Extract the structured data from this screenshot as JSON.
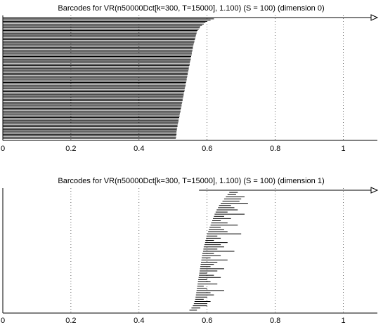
{
  "chart_data": [
    {
      "type": "barcode",
      "title": "Barcodes for VR(n50000Dct[k=300, T=15000], 1.100) (S = 100) (dimension 0)",
      "xlim": [
        0,
        1.1
      ],
      "xticks": [
        0,
        0.2,
        0.4,
        0.6,
        0.8,
        1
      ],
      "grid": true,
      "color": "#000000",
      "starts": [
        0,
        0,
        0,
        0,
        0,
        0,
        0,
        0,
        0,
        0,
        0,
        0,
        0,
        0,
        0,
        0,
        0,
        0,
        0,
        0,
        0,
        0,
        0,
        0,
        0,
        0,
        0,
        0,
        0,
        0,
        0,
        0,
        0,
        0,
        0,
        0,
        0,
        0,
        0,
        0,
        0,
        0,
        0,
        0,
        0,
        0,
        0,
        0,
        0,
        0,
        0,
        0,
        0,
        0,
        0,
        0,
        0,
        0,
        0,
        0,
        0,
        0,
        0,
        0,
        0,
        0,
        0,
        0,
        0,
        0,
        0,
        0,
        0,
        0,
        0,
        0,
        0,
        0,
        0,
        0,
        0,
        0,
        0,
        0,
        0,
        0,
        0,
        0,
        0,
        0,
        0,
        0,
        0,
        0
      ],
      "ends": [
        null,
        0.62,
        0.61,
        0.6,
        0.595,
        0.59,
        0.585,
        0.58,
        0.578,
        0.575,
        0.572,
        0.57,
        0.569,
        0.568,
        0.567,
        0.566,
        0.565,
        0.564,
        0.563,
        0.562,
        0.561,
        0.56,
        0.559,
        0.558,
        0.558,
        0.557,
        0.556,
        0.555,
        0.555,
        0.554,
        0.553,
        0.552,
        0.552,
        0.551,
        0.55,
        0.549,
        0.549,
        0.548,
        0.547,
        0.546,
        0.546,
        0.545,
        0.544,
        0.543,
        0.543,
        0.542,
        0.541,
        0.54,
        0.54,
        0.539,
        0.538,
        0.537,
        0.537,
        0.536,
        0.535,
        0.534,
        0.534,
        0.533,
        0.532,
        0.531,
        0.531,
        0.53,
        0.529,
        0.528,
        0.528,
        0.527,
        0.526,
        0.525,
        0.525,
        0.524,
        0.523,
        0.522,
        0.522,
        0.521,
        0.52,
        0.519,
        0.519,
        0.518,
        0.517,
        0.516,
        0.516,
        0.515,
        0.514,
        0.513,
        0.513,
        0.512,
        0.511,
        0.511,
        0.51,
        0.51,
        0.51,
        0.509,
        0.509,
        0.508
      ]
    },
    {
      "type": "barcode",
      "title": "Barcodes for VR(n50000Dct[k=300, T=15000], 1.100) (S = 100) (dimension 1)",
      "xlim": [
        0,
        1.1
      ],
      "xticks": [
        0,
        0.2,
        0.4,
        0.6,
        0.8,
        1
      ],
      "grid": true,
      "color": "#000000",
      "starts": [
        0.576,
        0.665,
        0.66,
        0.655,
        0.65,
        0.645,
        0.64,
        0.635,
        0.632,
        0.628,
        0.625,
        0.622,
        0.62,
        0.617,
        0.615,
        0.612,
        0.61,
        0.607,
        0.605,
        0.603,
        0.6,
        0.598,
        0.597,
        0.595,
        0.594,
        0.592,
        0.59,
        0.589,
        0.588,
        0.586,
        0.585,
        0.584,
        0.583,
        0.582,
        0.581,
        0.58,
        0.579,
        0.578,
        0.577,
        0.576,
        0.575,
        0.574,
        0.573,
        0.572,
        0.571,
        0.57,
        0.569,
        0.568,
        0.567,
        0.566,
        0.565,
        0.563,
        0.561,
        0.558,
        0.554,
        0.548
      ],
      "ends": [
        null,
        0.69,
        0.685,
        0.71,
        0.7,
        0.695,
        0.72,
        0.67,
        0.68,
        0.69,
        0.66,
        0.71,
        0.65,
        0.67,
        0.64,
        0.66,
        0.69,
        0.64,
        0.65,
        0.66,
        0.7,
        0.63,
        0.64,
        0.62,
        0.66,
        0.64,
        0.65,
        0.63,
        0.68,
        0.62,
        0.64,
        0.61,
        0.66,
        0.63,
        0.62,
        0.61,
        0.65,
        0.63,
        0.6,
        0.62,
        0.64,
        0.6,
        0.61,
        0.63,
        0.59,
        0.6,
        0.65,
        0.61,
        0.62,
        0.6,
        0.59,
        0.61,
        0.6,
        0.6,
        0.58,
        0.57
      ]
    }
  ]
}
